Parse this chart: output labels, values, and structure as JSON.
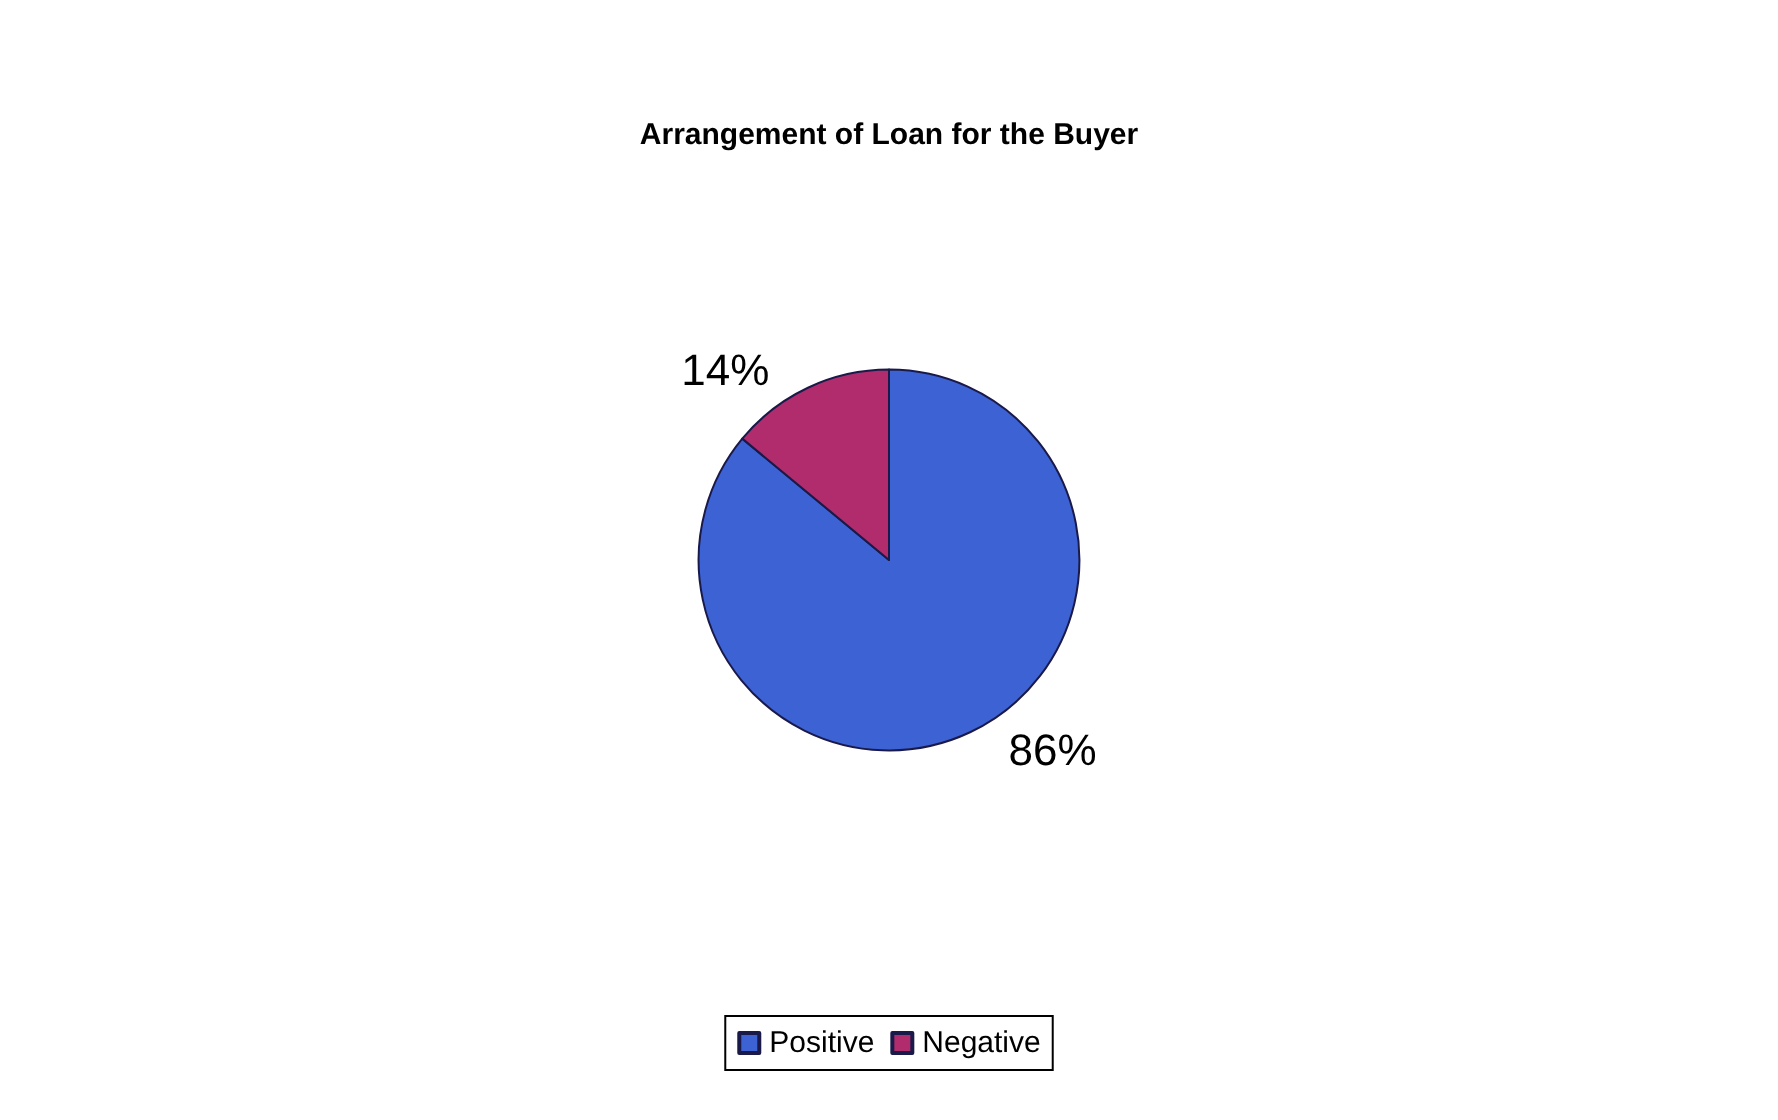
{
  "chart_data": {
    "type": "pie",
    "title": "Arrangement of Loan for the Buyer",
    "categories": [
      "Positive",
      "Negative"
    ],
    "values": [
      86,
      14
    ],
    "colors": [
      "#3c62d4",
      "#b02c6c"
    ],
    "value_labels": [
      "86%",
      "14%"
    ],
    "legend": "bottom"
  }
}
